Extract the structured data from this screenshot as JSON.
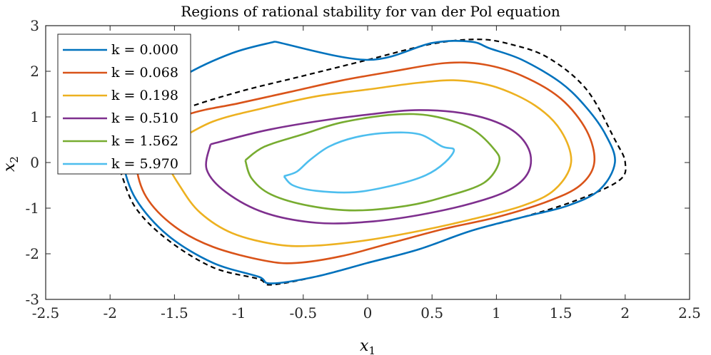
{
  "chart_data": {
    "type": "line",
    "title": "Regions of rational stability for van der Pol equation",
    "xlabel": "x",
    "xlabel_sub": "1",
    "ylabel": "x",
    "ylabel_sub": "2",
    "xlim": [
      -2.5,
      2.5
    ],
    "ylim": [
      -3,
      3
    ],
    "xticks": [
      -2.5,
      -2,
      -1.5,
      -1,
      -0.5,
      0,
      0.5,
      1,
      1.5,
      2,
      2.5
    ],
    "yticks": [
      -3,
      -2,
      -1,
      0,
      1,
      2,
      3
    ],
    "xtick_labels": [
      "-2.5",
      "-2",
      "-1.5",
      "-1",
      "-0.5",
      "0",
      "0.5",
      "1",
      "1.5",
      "2",
      "2.5"
    ],
    "ytick_labels": [
      "-3",
      "-2",
      "-1",
      "0",
      "1",
      "2",
      "3"
    ],
    "grid": false,
    "legend_position": "top-left",
    "series": [
      {
        "name": "k = 0.000",
        "color": "#0072BD",
        "points": [
          [
            -0.72,
            2.65
          ],
          [
            -1.05,
            2.4
          ],
          [
            -1.43,
            1.9
          ],
          [
            -1.75,
            1.25
          ],
          [
            -1.9,
            0.5
          ],
          [
            -1.9,
            0
          ],
          [
            -1.8,
            -0.8
          ],
          [
            -1.55,
            -1.6
          ],
          [
            -1.2,
            -2.2
          ],
          [
            -0.85,
            -2.5
          ],
          [
            -0.75,
            -2.65
          ],
          [
            -0.4,
            -2.5
          ],
          [
            0,
            -2.2
          ],
          [
            0.4,
            -1.9
          ],
          [
            0.8,
            -1.5
          ],
          [
            1.2,
            -1.2
          ],
          [
            1.55,
            -0.95
          ],
          [
            1.8,
            -0.6
          ],
          [
            1.92,
            0
          ],
          [
            1.85,
            0.6
          ],
          [
            1.7,
            1.2
          ],
          [
            1.5,
            1.75
          ],
          [
            1.2,
            2.25
          ],
          [
            0.95,
            2.5
          ],
          [
            0.8,
            2.65
          ],
          [
            0.5,
            2.62
          ],
          [
            0,
            2.25
          ],
          [
            -0.72,
            2.65
          ]
        ]
      },
      {
        "name": "k = 0.068",
        "color": "#D95319",
        "points": [
          [
            -1.77,
            0.55
          ],
          [
            -1.8,
            0
          ],
          [
            -1.72,
            -0.75
          ],
          [
            -1.5,
            -1.4
          ],
          [
            -1.2,
            -1.85
          ],
          [
            -0.8,
            -2.15
          ],
          [
            -0.55,
            -2.2
          ],
          [
            -0.2,
            -2.05
          ],
          [
            0.2,
            -1.75
          ],
          [
            0.6,
            -1.45
          ],
          [
            1,
            -1.2
          ],
          [
            1.4,
            -0.85
          ],
          [
            1.65,
            -0.5
          ],
          [
            1.76,
            0
          ],
          [
            1.7,
            0.7
          ],
          [
            1.5,
            1.4
          ],
          [
            1.2,
            1.9
          ],
          [
            0.9,
            2.15
          ],
          [
            0.6,
            2.18
          ],
          [
            0.2,
            2
          ],
          [
            -0.2,
            1.8
          ],
          [
            -0.6,
            1.55
          ],
          [
            -1,
            1.3
          ],
          [
            -1.4,
            1.05
          ],
          [
            -1.77,
            0.55
          ]
        ]
      },
      {
        "name": "k = 0.198",
        "color": "#EDB120",
        "points": [
          [
            -1.5,
            0.45
          ],
          [
            -1.55,
            0
          ],
          [
            -1.45,
            -0.55
          ],
          [
            -1.3,
            -1.1
          ],
          [
            -1.05,
            -1.55
          ],
          [
            -0.7,
            -1.8
          ],
          [
            -0.4,
            -1.82
          ],
          [
            0,
            -1.7
          ],
          [
            0.4,
            -1.5
          ],
          [
            0.8,
            -1.25
          ],
          [
            1.2,
            -0.95
          ],
          [
            1.45,
            -0.6
          ],
          [
            1.58,
            0
          ],
          [
            1.5,
            0.7
          ],
          [
            1.3,
            1.25
          ],
          [
            1,
            1.65
          ],
          [
            0.7,
            1.8
          ],
          [
            0.4,
            1.75
          ],
          [
            0,
            1.6
          ],
          [
            -0.4,
            1.45
          ],
          [
            -0.8,
            1.2
          ],
          [
            -1.2,
            0.9
          ],
          [
            -1.5,
            0.45
          ]
        ]
      },
      {
        "name": "k = 0.510",
        "color": "#7E2F8E",
        "points": [
          [
            -1.22,
            0.4
          ],
          [
            -1.25,
            -0.15
          ],
          [
            -1.1,
            -0.65
          ],
          [
            -0.8,
            -1.1
          ],
          [
            -0.4,
            -1.32
          ],
          [
            0,
            -1.3
          ],
          [
            0.4,
            -1.15
          ],
          [
            0.8,
            -0.9
          ],
          [
            1.1,
            -0.6
          ],
          [
            1.25,
            -0.2
          ],
          [
            1.25,
            0.3
          ],
          [
            1.1,
            0.75
          ],
          [
            0.8,
            1.05
          ],
          [
            0.4,
            1.15
          ],
          [
            0,
            1.05
          ],
          [
            -0.4,
            0.9
          ],
          [
            -0.8,
            0.7
          ],
          [
            -1.22,
            0.4
          ]
        ]
      },
      {
        "name": "k = 1.562",
        "color": "#77AC30",
        "points": [
          [
            -0.95,
            0.05
          ],
          [
            -0.9,
            -0.35
          ],
          [
            -0.75,
            -0.7
          ],
          [
            -0.45,
            -0.95
          ],
          [
            -0.1,
            -1.05
          ],
          [
            0.3,
            -0.95
          ],
          [
            0.6,
            -0.75
          ],
          [
            0.9,
            -0.45
          ],
          [
            1.02,
            0
          ],
          [
            0.98,
            0.3
          ],
          [
            0.8,
            0.75
          ],
          [
            0.5,
            1.02
          ],
          [
            0.2,
            1.05
          ],
          [
            -0.2,
            0.88
          ],
          [
            -0.5,
            0.62
          ],
          [
            -0.8,
            0.35
          ],
          [
            -0.95,
            0.05
          ]
        ]
      },
      {
        "name": "k = 5.970",
        "color": "#4DBEEE",
        "points": [
          [
            -0.65,
            -0.3
          ],
          [
            -0.58,
            -0.5
          ],
          [
            -0.4,
            -0.62
          ],
          [
            -0.1,
            -0.65
          ],
          [
            0.2,
            -0.5
          ],
          [
            0.45,
            -0.28
          ],
          [
            0.6,
            0
          ],
          [
            0.67,
            0.28
          ],
          [
            0.58,
            0.35
          ],
          [
            0.4,
            0.62
          ],
          [
            0.15,
            0.65
          ],
          [
            -0.1,
            0.55
          ],
          [
            -0.3,
            0.35
          ],
          [
            -0.45,
            0.05
          ],
          [
            -0.55,
            -0.2
          ],
          [
            -0.65,
            -0.3
          ]
        ]
      }
    ],
    "boundary": {
      "style": "dashed",
      "color": "#000000",
      "points": [
        [
          -2,
          0.35
        ],
        [
          -1.92,
          -0.2
        ],
        [
          -1.8,
          -1
        ],
        [
          -1.55,
          -1.7
        ],
        [
          -1.2,
          -2.3
        ],
        [
          -0.85,
          -2.55
        ],
        [
          -0.75,
          -2.68
        ],
        [
          -0.4,
          -2.5
        ],
        [
          0,
          -2.2
        ],
        [
          0.4,
          -1.9
        ],
        [
          0.8,
          -1.5
        ],
        [
          1.2,
          -1.2
        ],
        [
          1.6,
          -0.85
        ],
        [
          1.95,
          -0.4
        ],
        [
          2,
          0
        ],
        [
          1.92,
          0.5
        ],
        [
          1.7,
          1.6
        ],
        [
          1.4,
          2.3
        ],
        [
          1.1,
          2.6
        ],
        [
          0.85,
          2.7
        ],
        [
          0.5,
          2.6
        ],
        [
          0,
          2.25
        ],
        [
          -0.5,
          1.9
        ],
        [
          -1,
          1.55
        ],
        [
          -1.45,
          1.15
        ],
        [
          -1.8,
          0.7
        ],
        [
          -2,
          0.35
        ]
      ]
    }
  }
}
